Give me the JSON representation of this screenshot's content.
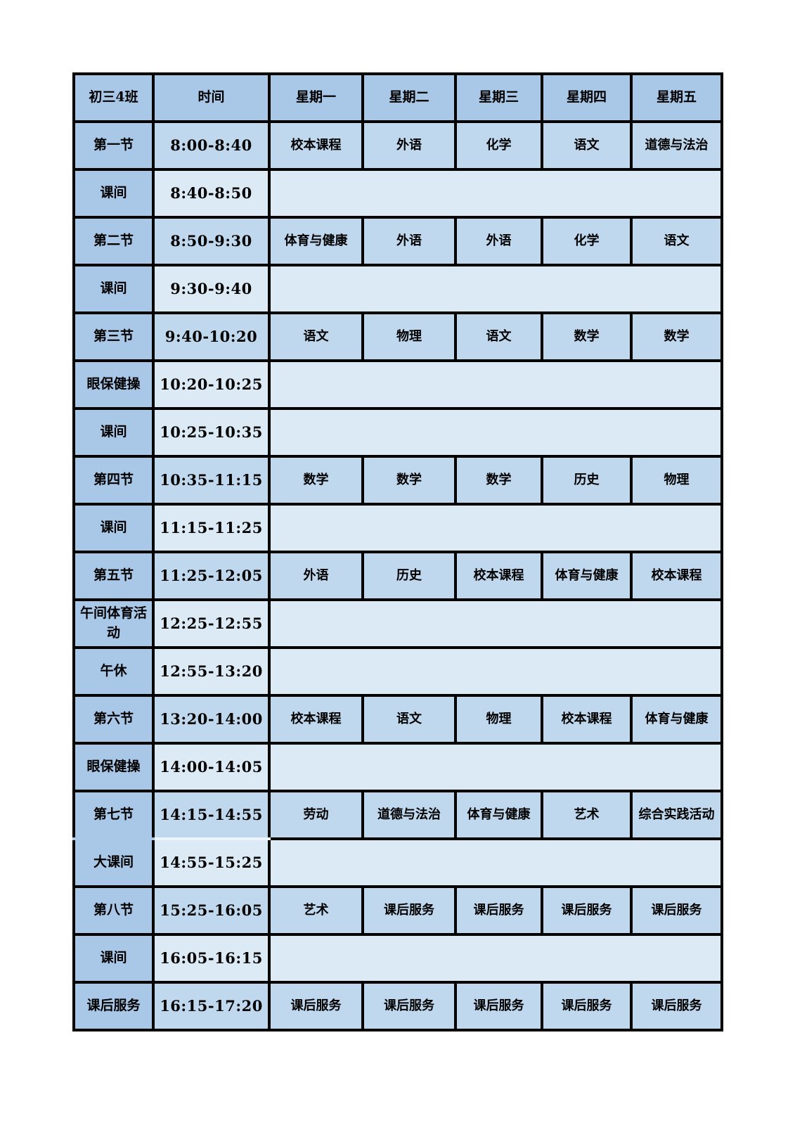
{
  "table": {
    "class_name": "初三4班",
    "header": {
      "time_label": "时间",
      "days": [
        "星期一",
        "星期二",
        "星期三",
        "星期四",
        "星期五"
      ]
    },
    "colors": {
      "header_label_bg": "#a9c8e7",
      "subject_bg": "#bfd8ee",
      "break_bg": "#dceaf6",
      "border": "#000000",
      "text": "#000000",
      "merged_gap_line": "#eef4fb"
    },
    "rows": [
      {
        "type": "class",
        "label": "第一节",
        "time": "8:00-8:40",
        "subjects": [
          "校本课程",
          "外语",
          "化学",
          "语文",
          "道德与法治"
        ]
      },
      {
        "type": "break",
        "label": "课间",
        "time": "8:40-8:50"
      },
      {
        "type": "class",
        "label": "第二节",
        "time": "8:50-9:30",
        "subjects": [
          "体育与健康",
          "外语",
          "外语",
          "化学",
          "语文"
        ]
      },
      {
        "type": "break",
        "label": "课间",
        "time": "9:30-9:40"
      },
      {
        "type": "class",
        "label": "第三节",
        "time": "9:40-10:20",
        "subjects": [
          "语文",
          "物理",
          "语文",
          "数学",
          "数学"
        ]
      },
      {
        "type": "break",
        "label": "眼保健操",
        "time": "10:20-10:25"
      },
      {
        "type": "break",
        "label": "课间",
        "time": "10:25-10:35"
      },
      {
        "type": "class",
        "label": "第四节",
        "time": "10:35-11:15",
        "subjects": [
          "数学",
          "数学",
          "数学",
          "历史",
          "物理"
        ]
      },
      {
        "type": "break",
        "label": "课间",
        "time": "11:15-11:25"
      },
      {
        "type": "class",
        "label": "第五节",
        "time": "11:25-12:05",
        "subjects": [
          "外语",
          "历史",
          "校本课程",
          "体育与健康",
          "校本课程"
        ]
      },
      {
        "type": "break",
        "label": "午间体育活动",
        "time": "12:25-12:55"
      },
      {
        "type": "break",
        "label": "午休",
        "time": "12:55-13:20"
      },
      {
        "type": "class",
        "label": "第六节",
        "time": "13:20-14:00",
        "subjects": [
          "校本课程",
          "语文",
          "物理",
          "校本课程",
          "体育与健康"
        ]
      },
      {
        "type": "break",
        "label": "眼保健操",
        "time": "14:00-14:05"
      },
      {
        "type": "class",
        "label": "第七节",
        "time": "14:15-14:55",
        "subjects": [
          "劳动",
          "道德与法治",
          "体育与健康",
          "艺术",
          "综合实践活动"
        ],
        "merge_left_with_next": true
      },
      {
        "type": "break",
        "label": "大课间",
        "time": "14:55-15:25",
        "merge_left_with_prev": true
      },
      {
        "type": "class",
        "label": "第八节",
        "time": "15:25-16:05",
        "subjects": [
          "艺术",
          "课后服务",
          "课后服务",
          "课后服务",
          "课后服务"
        ]
      },
      {
        "type": "break",
        "label": "课间",
        "time": "16:05-16:15"
      },
      {
        "type": "class",
        "label": "课后服务",
        "time": "16:15-17:20",
        "subjects": [
          "课后服务",
          "课后服务",
          "课后服务",
          "课后服务",
          "课后服务"
        ]
      }
    ]
  }
}
